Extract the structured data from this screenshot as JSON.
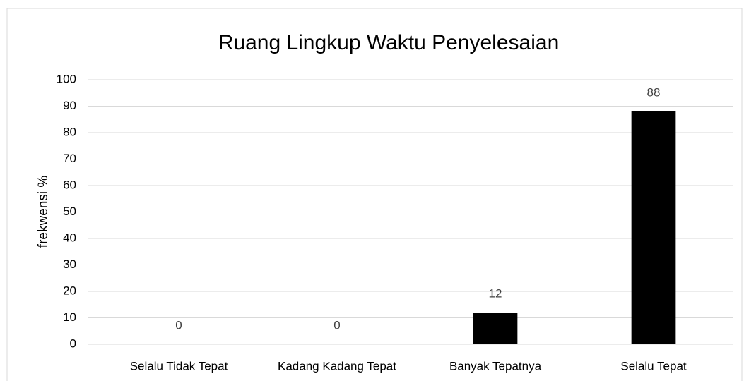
{
  "chart_data": {
    "type": "bar",
    "title": "Ruang Lingkup Waktu Penyelesaian",
    "y_label": "frekwensi %",
    "categories": [
      "Selalu Tidak Tepat",
      "Kadang Kadang Tepat",
      "Banyak Tepatnya",
      "Selalu Tepat"
    ],
    "values": [
      0,
      0,
      12,
      88
    ],
    "color": "#000000",
    "ylim": [
      0,
      100
    ],
    "yticks": [
      0,
      10,
      20,
      30,
      40,
      50,
      60,
      70,
      80,
      90,
      100
    ],
    "grid": true
  }
}
